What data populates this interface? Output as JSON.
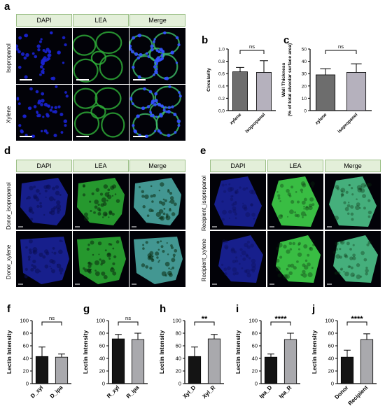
{
  "panels": {
    "a": {
      "label": "a",
      "columns": [
        "DAPI",
        "LEA",
        "Merge"
      ],
      "rows": [
        "Isopropanol",
        "Xylene"
      ]
    },
    "d": {
      "label": "d",
      "columns": [
        "DAPI",
        "LEA",
        "Merge"
      ],
      "rows": [
        "Donor_isopropanol",
        "Donor_xylene"
      ]
    },
    "e": {
      "label": "e",
      "columns": [
        "DAPI",
        "LEA",
        "Merge"
      ],
      "rows": [
        "Recipient_isopropanol",
        "Recipient_xylene"
      ]
    }
  },
  "colors": {
    "dapi": "#1a22d0",
    "lea": "#2fb33a",
    "merge": "#3aa6a0",
    "dark_bar": "#6d6d6d",
    "light_bar": "#b5b1bd",
    "black_bar": "#141414",
    "grey_bar": "#a9a9ad",
    "header_bg": "#e3efd9"
  },
  "chart_data": [
    {
      "id": "b",
      "label": "b",
      "type": "bar",
      "ylabel": "Circularity",
      "xlabel": "",
      "categories": [
        "xylene",
        "isopropanol"
      ],
      "values": [
        0.63,
        0.62
      ],
      "errors": [
        0.07,
        0.19
      ],
      "ylim": [
        0.0,
        1.0
      ],
      "yticks": [
        "0.0",
        "0.2",
        "0.4",
        "0.6",
        "0.8",
        "1.0"
      ],
      "significance": "ns",
      "style": "grey"
    },
    {
      "id": "c",
      "label": "c",
      "type": "bar",
      "ylabel": "Wall Thickness\n(% of total alveolar surface area)",
      "xlabel": "",
      "categories": [
        "xylene",
        "isopropanol"
      ],
      "values": [
        29,
        31
      ],
      "errors": [
        5,
        7
      ],
      "ylim": [
        0,
        50
      ],
      "yticks": [
        "0",
        "10",
        "20",
        "30",
        "40",
        "50"
      ],
      "significance": "ns",
      "style": "grey"
    },
    {
      "id": "f",
      "label": "f",
      "type": "bar",
      "ylabel": "Lectin Intensity",
      "xlabel": "",
      "categories": [
        "D_xyl",
        "D_ipa"
      ],
      "values": [
        43,
        42
      ],
      "errors": [
        15,
        5
      ],
      "ylim": [
        0,
        100
      ],
      "yticks": [
        "0",
        "20",
        "40",
        "60",
        "80",
        "100"
      ],
      "significance": "ns",
      "style": "bw"
    },
    {
      "id": "g",
      "label": "g",
      "type": "bar",
      "ylabel": "Lectin Intensity",
      "xlabel": "",
      "categories": [
        "R_xyl",
        "R_ipa"
      ],
      "values": [
        71,
        70
      ],
      "errors": [
        7,
        10
      ],
      "ylim": [
        0,
        100
      ],
      "yticks": [
        "0",
        "20",
        "40",
        "60",
        "80",
        "100"
      ],
      "significance": "ns",
      "style": "bw"
    },
    {
      "id": "h",
      "label": "h",
      "type": "bar",
      "ylabel": "Lectin Intensity",
      "xlabel": "",
      "categories": [
        "Xyl_D",
        "Xyl_R"
      ],
      "values": [
        43,
        71
      ],
      "errors": [
        15,
        7
      ],
      "ylim": [
        0,
        100
      ],
      "yticks": [
        "0",
        "20",
        "40",
        "60",
        "80",
        "100"
      ],
      "significance": "**",
      "style": "bw"
    },
    {
      "id": "i",
      "label": "i",
      "type": "bar",
      "ylabel": "Lectin Intensity",
      "xlabel": "",
      "categories": [
        "Ipa_D",
        "Ipa_R"
      ],
      "values": [
        42,
        70
      ],
      "errors": [
        5,
        10
      ],
      "ylim": [
        0,
        100
      ],
      "yticks": [
        "0",
        "20",
        "40",
        "60",
        "80",
        "100"
      ],
      "significance": "****",
      "style": "bw"
    },
    {
      "id": "j",
      "label": "j",
      "type": "bar",
      "ylabel": "Lectin Intensity",
      "xlabel": "",
      "categories": [
        "Donor",
        "Recipient"
      ],
      "values": [
        42,
        70
      ],
      "errors": [
        11,
        9
      ],
      "ylim": [
        0,
        100
      ],
      "yticks": [
        "0",
        "20",
        "40",
        "60",
        "80",
        "100"
      ],
      "significance": "****",
      "style": "bw"
    }
  ]
}
